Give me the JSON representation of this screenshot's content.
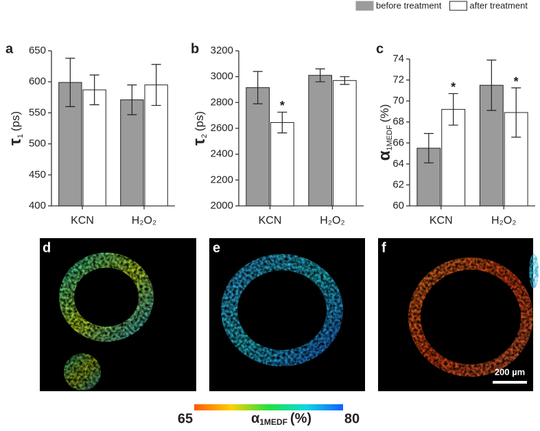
{
  "chart_data": [
    {
      "type": "bar",
      "panel": "a",
      "ylabel": {
        "symbol": "τ",
        "subscript": "1",
        "unit": "(ps)"
      },
      "categories": [
        "KCN",
        "H₂O₂"
      ],
      "series": [
        {
          "name": "before treatment",
          "color": "#9b9b9b",
          "values": [
            599,
            571
          ],
          "errors": [
            39,
            24
          ],
          "significance": [
            null,
            null
          ]
        },
        {
          "name": "after treatment",
          "color": "#ffffff",
          "values": [
            587,
            595
          ],
          "errors": [
            24,
            33
          ],
          "significance": [
            null,
            null
          ]
        }
      ],
      "ylim": [
        400,
        650
      ],
      "yticks": [
        400,
        450,
        500,
        550,
        600,
        650
      ],
      "legend": "top-right"
    },
    {
      "type": "bar",
      "panel": "b",
      "ylabel": {
        "symbol": "τ",
        "subscript": "2",
        "unit": "(ps)"
      },
      "categories": [
        "KCN",
        "H₂O₂"
      ],
      "series": [
        {
          "name": "before treatment",
          "color": "#9b9b9b",
          "values": [
            2915,
            3010
          ],
          "errors": [
            125,
            50
          ],
          "significance": [
            null,
            null
          ]
        },
        {
          "name": "after treatment",
          "color": "#ffffff",
          "values": [
            2645,
            2970
          ],
          "errors": [
            80,
            30
          ],
          "significance": [
            "*",
            null
          ]
        }
      ],
      "ylim": [
        2000,
        3200
      ],
      "yticks": [
        2000,
        2200,
        2400,
        2600,
        2800,
        3000,
        3200
      ]
    },
    {
      "type": "bar",
      "panel": "c",
      "ylabel": {
        "symbol": "α",
        "subscript": "1MEDF",
        "unit": "(%)"
      },
      "categories": [
        "KCN",
        "H₂O₂"
      ],
      "series": [
        {
          "name": "before treatment",
          "color": "#9b9b9b",
          "values": [
            65.5,
            71.5
          ],
          "errors": [
            1.4,
            2.4
          ],
          "significance": [
            null,
            null
          ]
        },
        {
          "name": "after treatment",
          "color": "#ffffff",
          "values": [
            69.2,
            68.9
          ],
          "errors": [
            1.5,
            2.35
          ],
          "significance": [
            "*",
            "*"
          ]
        }
      ],
      "ylim": [
        60,
        74
      ],
      "yticks": [
        60,
        62,
        64,
        66,
        68,
        70,
        72,
        74
      ]
    }
  ],
  "images": [
    {
      "panel": "d"
    },
    {
      "panel": "e"
    },
    {
      "panel": "f",
      "scale_bar": "200 µm"
    }
  ],
  "colorbar": {
    "min": 65,
    "max": 80,
    "label": {
      "symbol": "α",
      "subscript": "1MEDF",
      "unit": "(%)"
    }
  }
}
